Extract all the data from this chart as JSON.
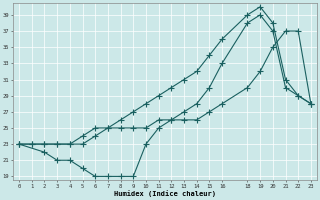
{
  "xlabel": "Humidex (Indice chaleur)",
  "bg_color": "#cce8e8",
  "grid_color": "#b0d0d0",
  "line_color": "#1a6060",
  "xlim": [
    -0.5,
    23.5
  ],
  "ylim": [
    18.5,
    40.5
  ],
  "xticks": [
    0,
    1,
    2,
    3,
    4,
    5,
    6,
    7,
    8,
    9,
    10,
    11,
    12,
    13,
    14,
    15,
    16,
    18,
    19,
    20,
    21,
    22,
    23
  ],
  "yticks": [
    19,
    21,
    23,
    25,
    27,
    29,
    31,
    33,
    35,
    37,
    39
  ],
  "curve1_x": [
    0,
    1,
    2,
    3,
    4,
    5,
    6,
    7,
    8,
    9,
    10,
    11,
    12,
    13,
    14,
    15,
    16,
    18,
    19,
    20,
    21,
    22,
    23
  ],
  "curve1_y": [
    23,
    23,
    23,
    23,
    23,
    24,
    25,
    25,
    26,
    27,
    28,
    29,
    30,
    31,
    32,
    34,
    36,
    39,
    40,
    38,
    31,
    29,
    28
  ],
  "curve2_x": [
    0,
    2,
    3,
    4,
    5,
    6,
    7,
    8,
    9,
    10,
    11,
    12,
    13,
    14,
    15,
    16,
    18,
    19,
    20,
    21,
    22,
    23
  ],
  "curve2_y": [
    23,
    22,
    21,
    21,
    20,
    19,
    19,
    19,
    19,
    23,
    25,
    26,
    27,
    28,
    30,
    33,
    38,
    39,
    37,
    30,
    29,
    28
  ],
  "curve3_x": [
    0,
    1,
    2,
    3,
    4,
    5,
    6,
    7,
    8,
    9,
    10,
    11,
    12,
    13,
    14,
    15,
    16,
    18,
    19,
    20,
    21,
    22,
    23
  ],
  "curve3_y": [
    23,
    23,
    23,
    23,
    23,
    23,
    24,
    25,
    25,
    25,
    25,
    26,
    26,
    26,
    26,
    27,
    28,
    30,
    32,
    35,
    37,
    37,
    28
  ]
}
